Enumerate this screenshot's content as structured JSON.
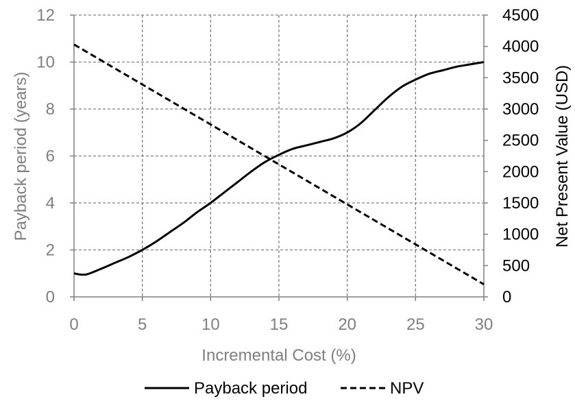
{
  "chart_data": {
    "type": "line",
    "title": "",
    "xlabel": "Incremental Cost (%)",
    "ylabel": "Payback period (years)",
    "y2label": "Net Present  Value (USD)",
    "xlim": [
      0,
      30
    ],
    "ylim": [
      0,
      12
    ],
    "y2lim": [
      0,
      4500
    ],
    "x_ticks": [
      0,
      5,
      10,
      15,
      20,
      25,
      30
    ],
    "y_ticks": [
      0,
      2,
      4,
      6,
      8,
      10,
      12
    ],
    "y2_ticks": [
      0,
      500,
      1000,
      1500,
      2000,
      2500,
      3000,
      3500,
      4000,
      4500
    ],
    "grid": true,
    "legend_position": "bottom",
    "colors": {
      "axis_text_left": "#7f7f7f",
      "axis_text_right": "#000000",
      "grid": "#7f7f7f",
      "line": "#000000"
    },
    "series": [
      {
        "name": "Payback period",
        "axis": "left",
        "style": "solid",
        "x": [
          0,
          0.5,
          1,
          2,
          3,
          4,
          5,
          6,
          7,
          8,
          9,
          10,
          11,
          12,
          13,
          14,
          15,
          16,
          17,
          18,
          19,
          20,
          21,
          22,
          23,
          24,
          25,
          26,
          27,
          28,
          29,
          30
        ],
        "y": [
          1.0,
          0.95,
          0.97,
          1.2,
          1.45,
          1.7,
          2.0,
          2.35,
          2.75,
          3.15,
          3.6,
          4.0,
          4.45,
          4.9,
          5.35,
          5.75,
          6.05,
          6.3,
          6.45,
          6.6,
          6.75,
          7.0,
          7.4,
          7.95,
          8.5,
          8.95,
          9.25,
          9.5,
          9.65,
          9.8,
          9.9,
          10.0
        ]
      },
      {
        "name": "NPV",
        "axis": "right",
        "style": "dashed",
        "x": [
          0,
          30
        ],
        "y": [
          4030,
          200
        ]
      }
    ]
  }
}
